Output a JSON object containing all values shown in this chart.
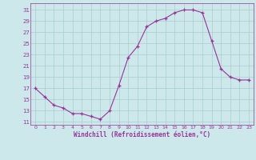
{
  "x": [
    0,
    1,
    2,
    3,
    4,
    5,
    6,
    7,
    8,
    9,
    10,
    11,
    12,
    13,
    14,
    15,
    16,
    17,
    18,
    19,
    20,
    21,
    22,
    23
  ],
  "y": [
    17,
    15.5,
    14,
    13.5,
    12.5,
    12.5,
    12,
    11.5,
    13,
    17.5,
    22.5,
    24.5,
    28,
    29,
    29.5,
    30.5,
    31,
    31,
    30.5,
    25.5,
    20.5,
    19,
    18.5,
    18.5
  ],
  "line_color": "#993399",
  "marker": "+",
  "bg_color": "#cce8ea",
  "grid_color": "#aacccc",
  "tick_label_color": "#993399",
  "axis_label_color": "#993399",
  "xlabel": "Windchill (Refroidissement éolien,°C)",
  "yticks": [
    11,
    13,
    15,
    17,
    19,
    21,
    23,
    25,
    27,
    29,
    31
  ],
  "xticks": [
    0,
    1,
    2,
    3,
    4,
    5,
    6,
    7,
    8,
    9,
    10,
    11,
    12,
    13,
    14,
    15,
    16,
    17,
    18,
    19,
    20,
    21,
    22,
    23
  ],
  "ylim": [
    10.5,
    32.2
  ],
  "xlim": [
    -0.5,
    23.5
  ]
}
